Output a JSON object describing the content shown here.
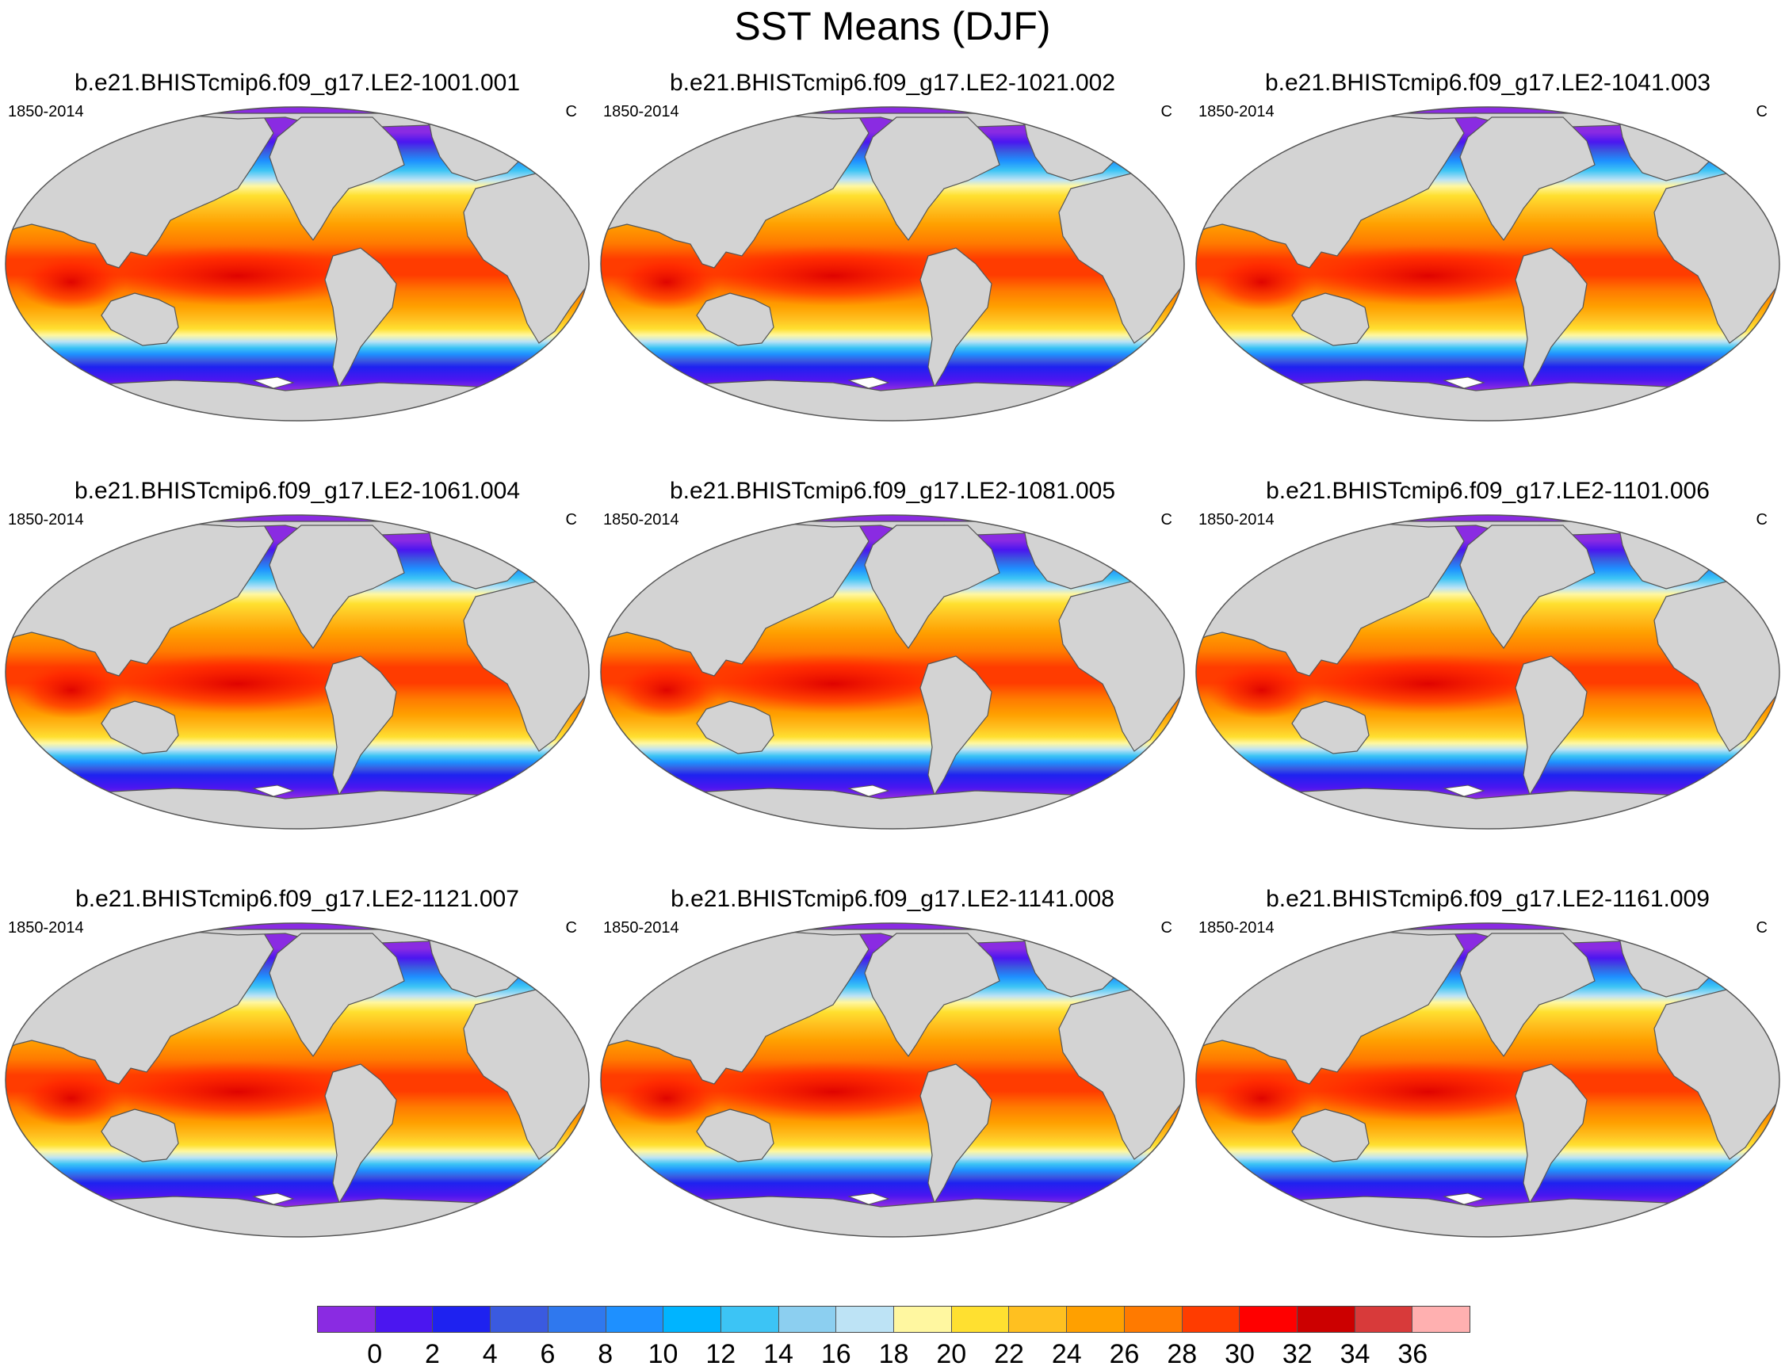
{
  "title": "SST Means (DJF)",
  "panels": [
    {
      "title": "b.e21.BHISTcmip6.f09_g17.LE2-1001.001",
      "left": "1850-2014",
      "right": "C"
    },
    {
      "title": "b.e21.BHISTcmip6.f09_g17.LE2-1021.002",
      "left": "1850-2014",
      "right": "C"
    },
    {
      "title": "b.e21.BHISTcmip6.f09_g17.LE2-1041.003",
      "left": "1850-2014",
      "right": "C"
    },
    {
      "title": "b.e21.BHISTcmip6.f09_g17.LE2-1061.004",
      "left": "1850-2014",
      "right": "C"
    },
    {
      "title": "b.e21.BHISTcmip6.f09_g17.LE2-1081.005",
      "left": "1850-2014",
      "right": "C"
    },
    {
      "title": "b.e21.BHISTcmip6.f09_g17.LE2-1101.006",
      "left": "1850-2014",
      "right": "C"
    },
    {
      "title": "b.e21.BHISTcmip6.f09_g17.LE2-1121.007",
      "left": "1850-2014",
      "right": "C"
    },
    {
      "title": "b.e21.BHISTcmip6.f09_g17.LE2-1141.008",
      "left": "1850-2014",
      "right": "C"
    },
    {
      "title": "b.e21.BHISTcmip6.f09_g17.LE2-1161.009",
      "left": "1850-2014",
      "right": "C"
    }
  ],
  "colorbar": {
    "labels": [
      "0",
      "2",
      "4",
      "6",
      "8",
      "10",
      "12",
      "14",
      "16",
      "18",
      "20",
      "22",
      "24",
      "26",
      "28",
      "30",
      "32",
      "34",
      "36"
    ],
    "colors": [
      "#8a2be2",
      "#4b16f0",
      "#1e22f0",
      "#3a5ae0",
      "#2f78ee",
      "#1e90ff",
      "#00b4ff",
      "#3cc4f5",
      "#8ccff0",
      "#bde3f5",
      "#fff7a0",
      "#ffe030",
      "#ffc020",
      "#ffa000",
      "#ff7a00",
      "#ff3c00",
      "#ff0000",
      "#cc0000",
      "#d83a3a",
      "#ffb0b0"
    ]
  },
  "colors": {
    "land": "#d3d3d3",
    "coast": "#555555",
    "ice": "#ffffff"
  }
}
